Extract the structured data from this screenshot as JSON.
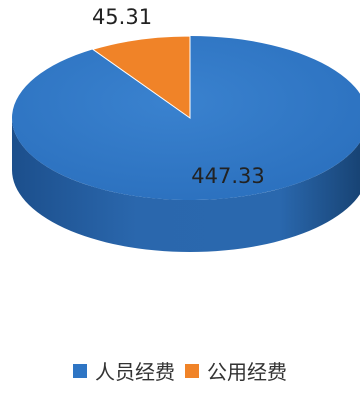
{
  "chart_data": {
    "type": "pie",
    "style": "3d",
    "slices": [
      {
        "label": "人员经费",
        "value": 447.33,
        "value_label": "447.33",
        "color": "#2E75C4"
      },
      {
        "label": "公用经费",
        "value": 45.31,
        "value_label": "45.31",
        "color": "#F08328"
      }
    ],
    "legend_position": "bottom"
  },
  "colors": {
    "series_1": "#2E75C4",
    "series_2": "#F08328",
    "label_text": "#222222"
  }
}
